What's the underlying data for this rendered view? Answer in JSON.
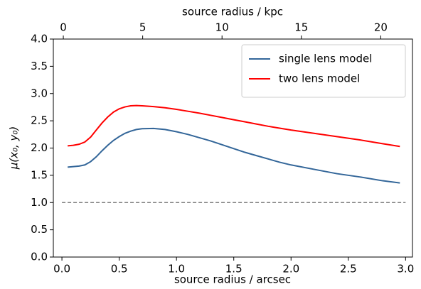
{
  "chart_data": {
    "type": "line",
    "xlabel": "source radius / arcsec",
    "x2label": "source radius / kpc",
    "ylabel": "μ(x₀, y₀)",
    "x": [
      0.05,
      0.1,
      0.15,
      0.2,
      0.25,
      0.3,
      0.35,
      0.4,
      0.45,
      0.5,
      0.55,
      0.6,
      0.65,
      0.7,
      0.8,
      0.9,
      1.0,
      1.1,
      1.2,
      1.3,
      1.4,
      1.5,
      1.6,
      1.7,
      1.8,
      1.9,
      2.0,
      2.2,
      2.4,
      2.6,
      2.8,
      2.95
    ],
    "series": [
      {
        "name": "single lens model",
        "color": "#336699",
        "values": [
          1.65,
          1.66,
          1.67,
          1.69,
          1.75,
          1.84,
          1.95,
          2.05,
          2.14,
          2.21,
          2.27,
          2.31,
          2.34,
          2.355,
          2.36,
          2.34,
          2.3,
          2.25,
          2.19,
          2.13,
          2.06,
          1.99,
          1.92,
          1.86,
          1.8,
          1.74,
          1.69,
          1.61,
          1.53,
          1.47,
          1.4,
          1.36
        ]
      },
      {
        "name": "two lens model",
        "color": "#ff0000",
        "values": [
          2.04,
          2.05,
          2.07,
          2.11,
          2.2,
          2.33,
          2.46,
          2.57,
          2.66,
          2.72,
          2.755,
          2.775,
          2.78,
          2.775,
          2.76,
          2.74,
          2.71,
          2.675,
          2.64,
          2.6,
          2.56,
          2.52,
          2.48,
          2.44,
          2.4,
          2.365,
          2.33,
          2.27,
          2.21,
          2.15,
          2.08,
          2.03
        ]
      }
    ],
    "hline": {
      "y": 1.0,
      "color": "#808080",
      "dash": true
    },
    "xlim": [
      -0.075,
      3.06
    ],
    "xticks": [
      {
        "value": 0,
        "label": "0.0"
      },
      {
        "value": 0.5,
        "label": "0.5"
      },
      {
        "value": 1,
        "label": "1.0"
      },
      {
        "value": 1.5,
        "label": "1.5"
      },
      {
        "value": 2,
        "label": "2.0"
      },
      {
        "value": 2.5,
        "label": "2.5"
      },
      {
        "value": 3,
        "label": "3.0"
      }
    ],
    "x2lim": [
      -0.63,
      22.0
    ],
    "x2ticks": [
      0,
      5,
      10,
      15,
      20
    ],
    "ylim": [
      0,
      4
    ],
    "yticks": [
      {
        "value": 0,
        "label": "0.0"
      },
      {
        "value": 0.5,
        "label": "0.5"
      },
      {
        "value": 1,
        "label": "1.0"
      },
      {
        "value": 1.5,
        "label": "1.5"
      },
      {
        "value": 2,
        "label": "2.0"
      },
      {
        "value": 2.5,
        "label": "2.5"
      },
      {
        "value": 3,
        "label": "3.0"
      },
      {
        "value": 3.5,
        "label": "3.5"
      },
      {
        "value": 4,
        "label": "4.0"
      }
    ],
    "legend": "upper right",
    "grid": false
  }
}
